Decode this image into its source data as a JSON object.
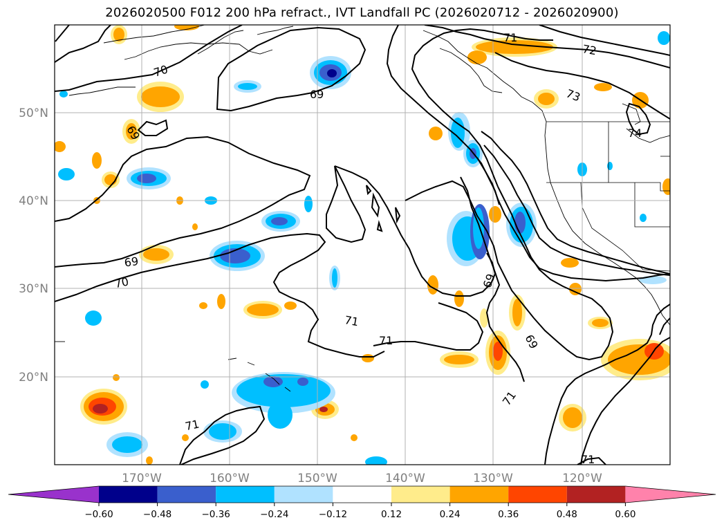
{
  "title": "2026020500 F012 200 hPa refract., IVT Landfall PC (2026020712 - 2026020900)",
  "longitude_ticks": [
    "170°W",
    "160°W",
    "150°W",
    "140°W",
    "130°W",
    "120°W"
  ],
  "latitude_ticks": [
    "50°N",
    "40°N",
    "30°N",
    "20°N"
  ],
  "colorbar": {
    "ticks": [
      "−0.60",
      "−0.48",
      "−0.36",
      "−0.24",
      "−0.12",
      "0.12",
      "0.24",
      "0.36",
      "0.48",
      "0.60"
    ],
    "colors": [
      "#9932cc",
      "#00008b",
      "#3a5fcd",
      "#00bfff",
      "#b0e2ff",
      "#ffffff",
      "#ffec8b",
      "#ffa500",
      "#ff4500",
      "#b22222",
      "#ff82ab"
    ]
  },
  "contour_labels": [
    "70",
    "69",
    "69",
    "69",
    "70",
    "71",
    "71",
    "71",
    "69",
    "69",
    "71",
    "71",
    "72",
    "73",
    "74",
    "71"
  ],
  "colors": {
    "gridline": "#b0b0b0",
    "coastline": "#000000",
    "contour": "#000000"
  }
}
